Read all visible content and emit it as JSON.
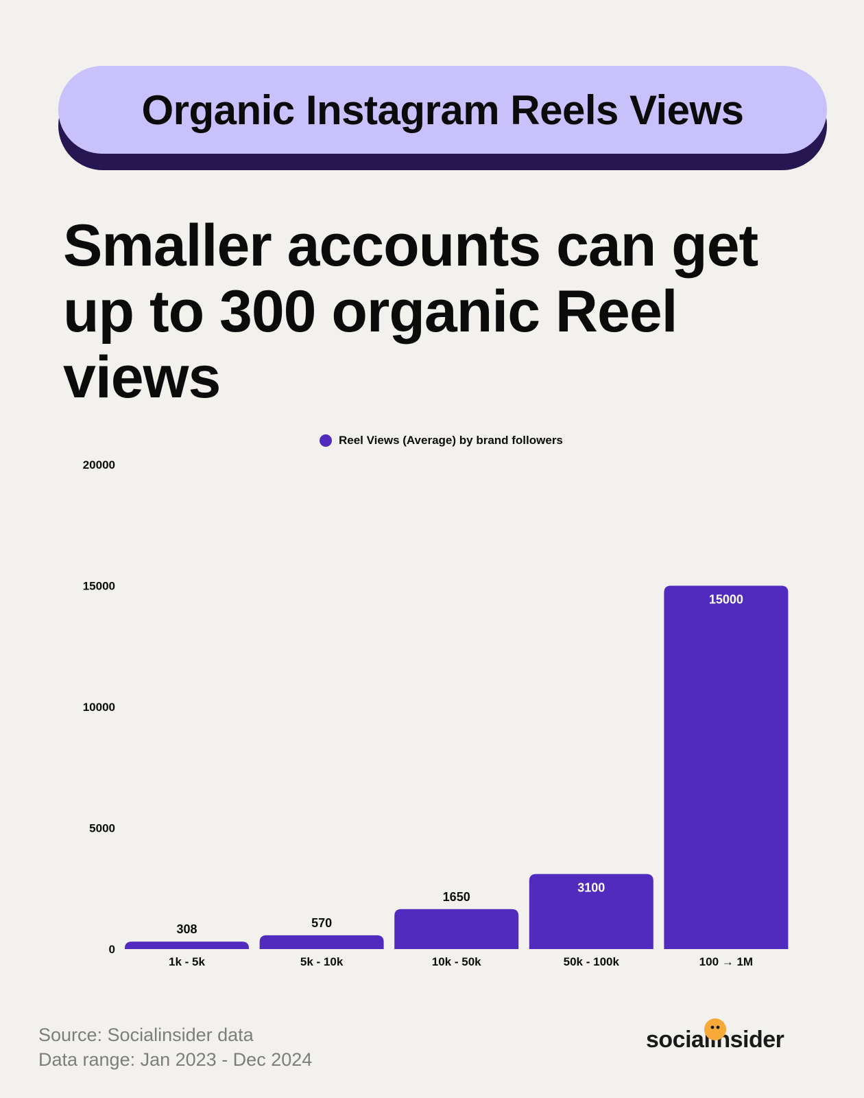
{
  "header": {
    "title": "Organic Instagram Reels Views"
  },
  "headline": "Smaller accounts can get up to 300 organic Reel views",
  "chart_data": {
    "type": "bar",
    "legend": "Reel Views (Average) by brand followers",
    "legend_position": "top-center",
    "categories": [
      "1k - 5k",
      "5k - 10k",
      "10k - 50k",
      "50k - 100k",
      "100 → 1M"
    ],
    "series": [
      {
        "name": "Reel Views (Average) by brand followers",
        "values": [
          308,
          570,
          1650,
          3100,
          15000
        ]
      }
    ],
    "data_labels": [
      "308",
      "570",
      "1650",
      "3100",
      "15000"
    ],
    "y_ticks": [
      0,
      5000,
      10000,
      15000,
      20000
    ],
    "ylim": [
      0,
      20000
    ],
    "grid": false,
    "bar_color": "#512bbd"
  },
  "footer": {
    "source": "Source: Socialinsider data",
    "range": "Data range: Jan 2023 - Dec 2024",
    "logo": "socialinsider"
  },
  "colors": {
    "background": "#f2f1ee",
    "pill": "#c9c1fb",
    "pill_shadow": "#261651",
    "accent": "#512bbd",
    "logo_face": "#f7a93a"
  }
}
